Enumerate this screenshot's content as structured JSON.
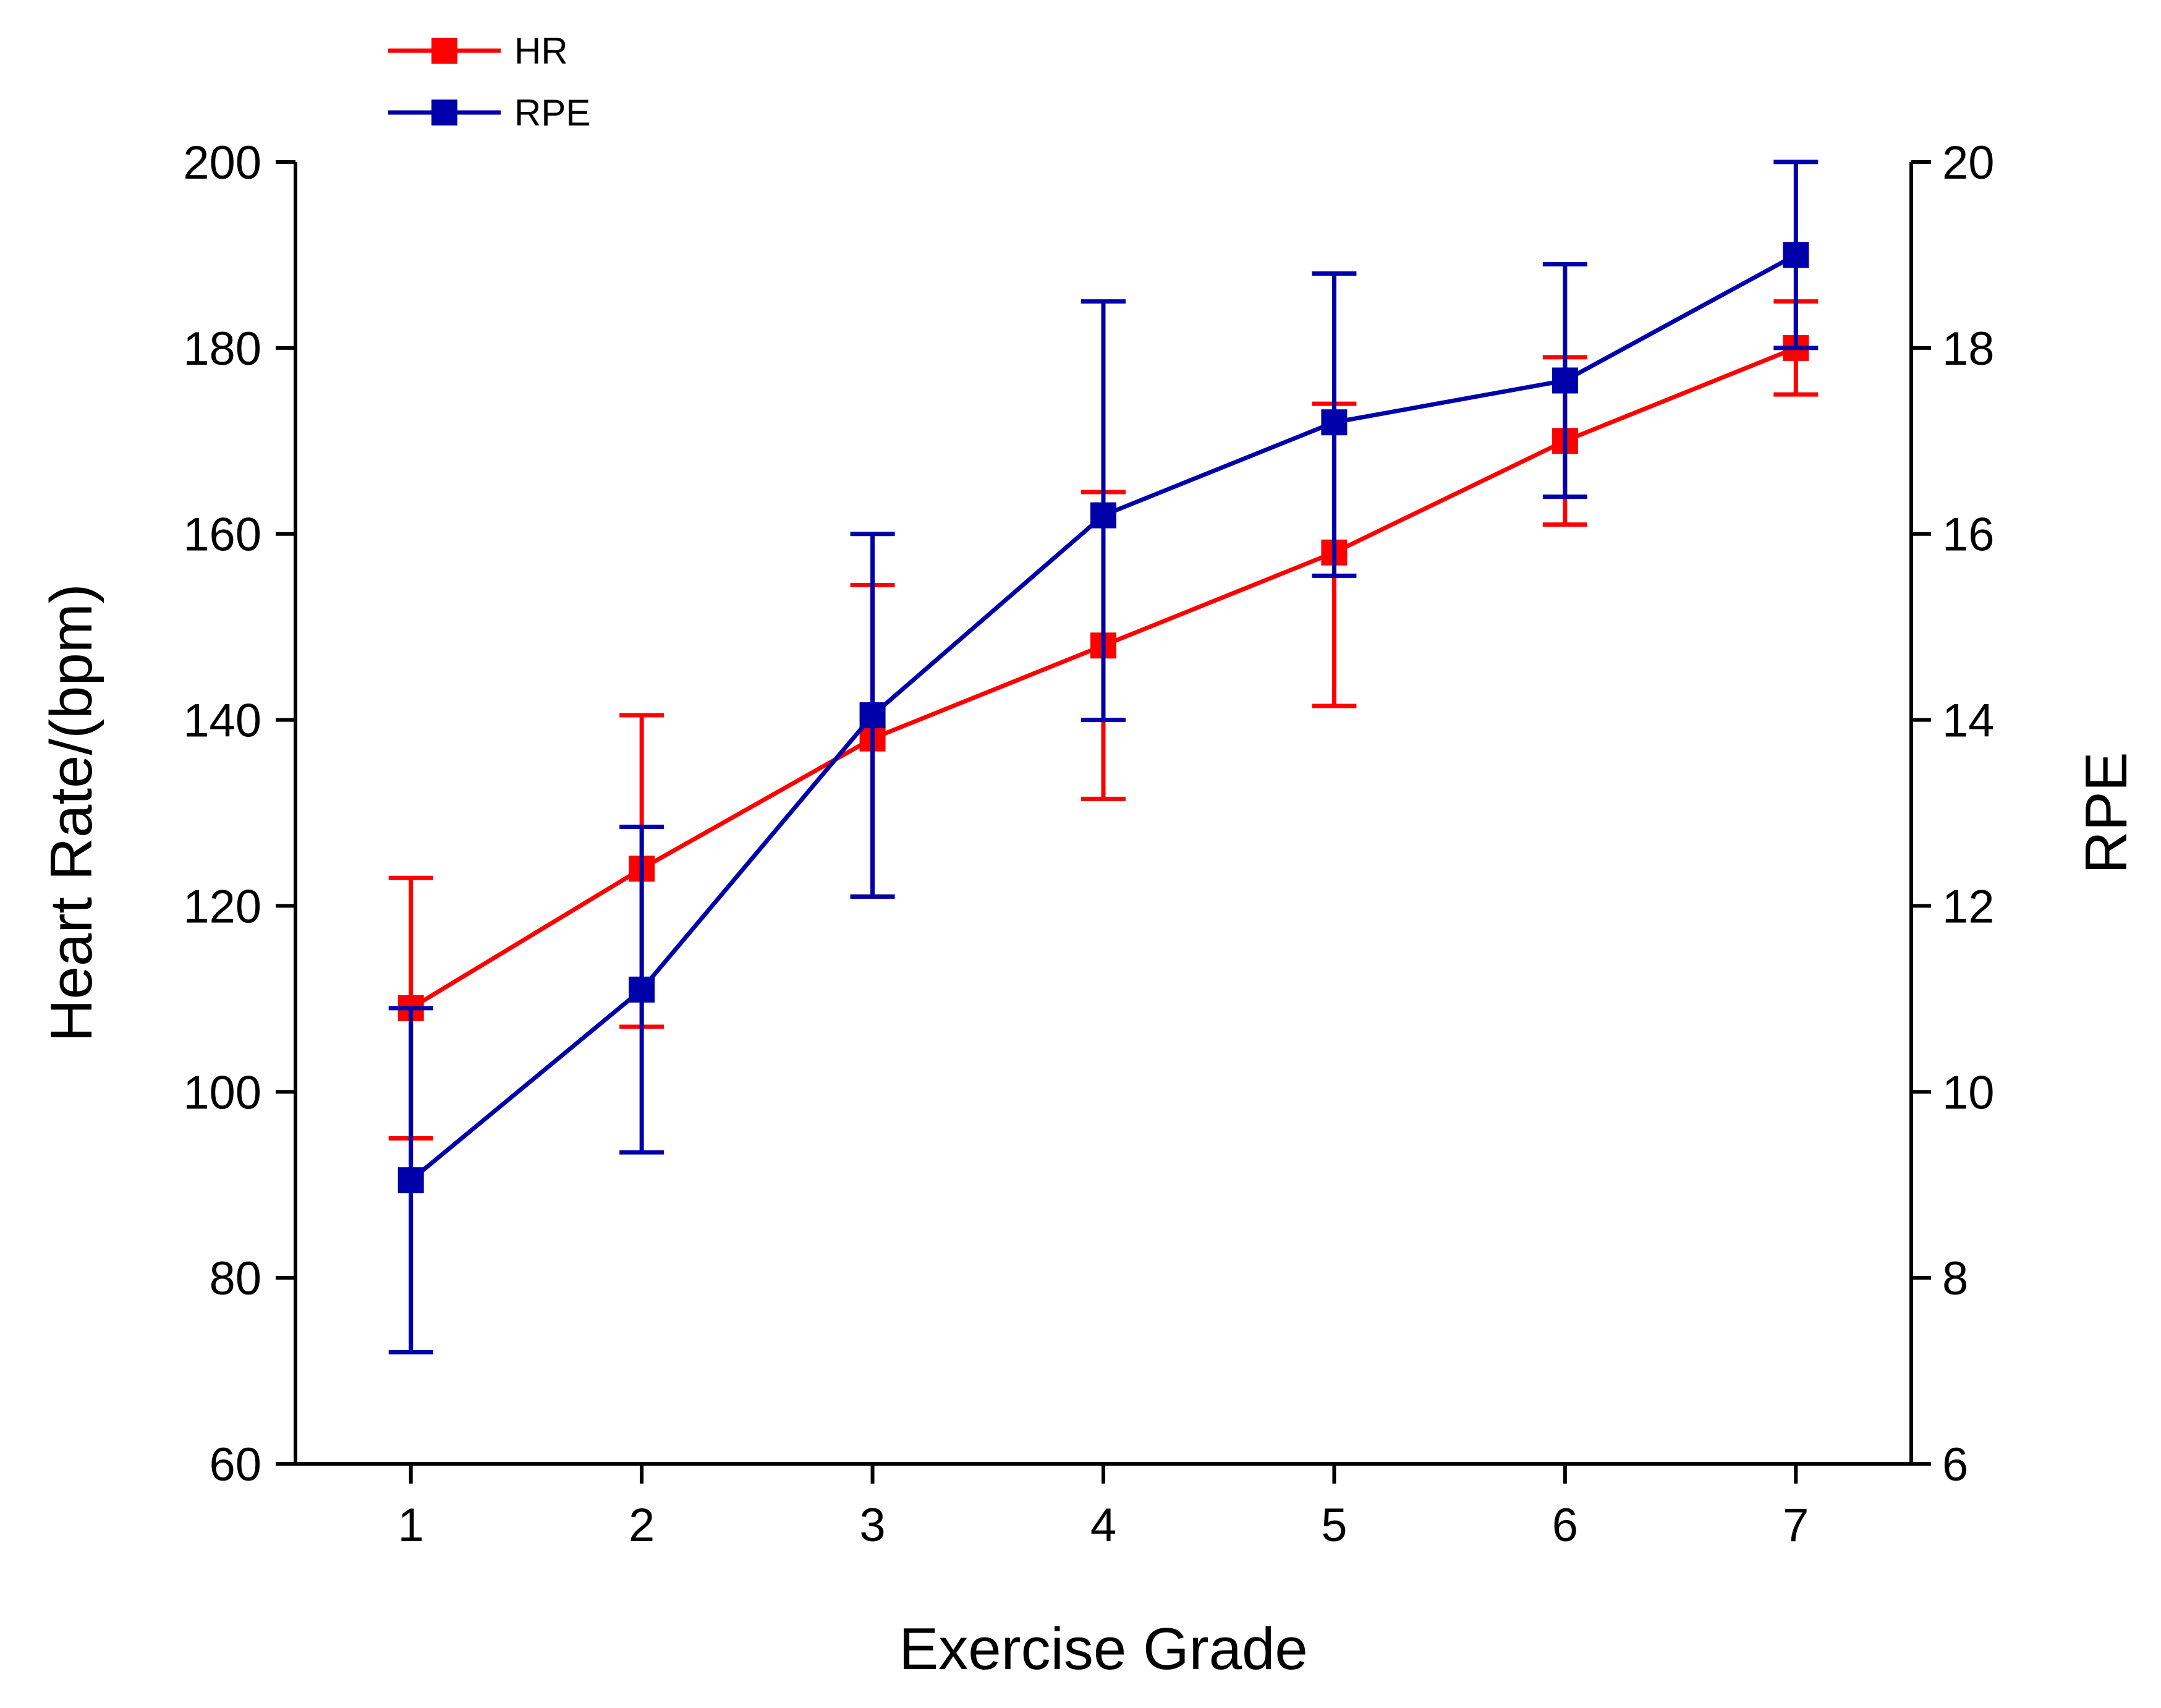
{
  "chart_data": {
    "type": "line",
    "title": "",
    "xlabel": "Exercise Grade",
    "ylabel": "Heart Rate/(bpm)",
    "y2label": "RPE",
    "categories": [
      "1",
      "2",
      "3",
      "4",
      "5",
      "6",
      "7"
    ],
    "x": [
      1,
      2,
      3,
      4,
      5,
      6,
      7
    ],
    "xlim": [
      0.5,
      7.5
    ],
    "ylim": [
      60,
      200
    ],
    "y2lim": [
      6,
      20
    ],
    "yticks": [
      "60",
      "80",
      "100",
      "120",
      "140",
      "160",
      "180",
      "200"
    ],
    "y2ticks": [
      "6",
      "8",
      "10",
      "12",
      "14",
      "16",
      "18",
      "20"
    ],
    "legend_position": "top-left",
    "grid": false,
    "series": [
      {
        "name": "HR",
        "axis": "left",
        "color": "#ff0000",
        "marker": "square",
        "values": [
          109,
          124,
          138,
          148,
          158,
          170,
          180
        ],
        "error_low": [
          95,
          107,
          121,
          131.5,
          141.5,
          161,
          175
        ],
        "error_high": [
          123,
          140.5,
          154.5,
          164.5,
          174,
          179,
          185
        ]
      },
      {
        "name": "RPE",
        "axis": "right",
        "color": "#0000aa",
        "marker": "square",
        "values": [
          9.05,
          11.1,
          14.05,
          16.2,
          17.2,
          17.65,
          19.0
        ],
        "error_low": [
          7.2,
          9.35,
          12.1,
          14.0,
          15.55,
          16.4,
          18.0
        ],
        "error_high": [
          10.9,
          12.85,
          16.0,
          18.5,
          18.8,
          18.9,
          20.0
        ]
      }
    ]
  }
}
